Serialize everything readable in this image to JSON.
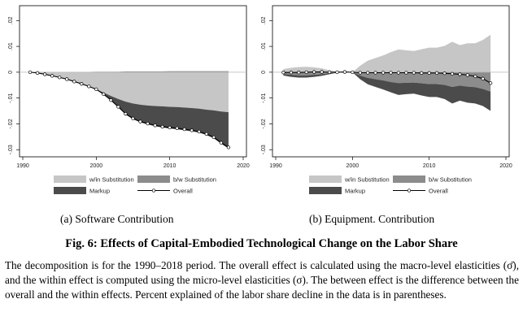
{
  "colors": {
    "within": "#c6c6c6",
    "between": "#8c8c8c",
    "markup": "#4b4b4b",
    "overall_line": "#000000",
    "overall_marker_fill": "#ffffff",
    "zero_line": "#b4b4b4"
  },
  "chart_data": [
    {
      "type": "area",
      "panel": "a",
      "caption": "(a) Software Contribution",
      "x_ticks": [
        1990,
        2000,
        2010,
        2020
      ],
      "y_ticks": [
        0.02,
        0.01,
        0,
        -0.01,
        -0.02,
        -0.03
      ],
      "y_tick_labels": [
        ".02",
        ".01",
        "0",
        "-.01",
        "-.02",
        "-.03"
      ],
      "xlim": [
        1990,
        2020
      ],
      "ylim": [
        -0.0315,
        0.0245
      ],
      "grid": false,
      "x": [
        1991,
        1992,
        1993,
        1994,
        1995,
        1996,
        1997,
        1998,
        1999,
        2000,
        2001,
        2002,
        2003,
        2004,
        2005,
        2006,
        2007,
        2008,
        2009,
        2010,
        2011,
        2012,
        2013,
        2014,
        2015,
        2016,
        2017,
        2018
      ],
      "series": [
        {
          "name": "w/in Substitution",
          "values": [
            0,
            -0.0003,
            -0.0008,
            -0.0014,
            -0.002,
            -0.0028,
            -0.0037,
            -0.0046,
            -0.0056,
            -0.0066,
            -0.0079,
            -0.0092,
            -0.0104,
            -0.0114,
            -0.0121,
            -0.0126,
            -0.0129,
            -0.0131,
            -0.0132,
            -0.0134,
            -0.0135,
            -0.0137,
            -0.0139,
            -0.0141,
            -0.0145,
            -0.0148,
            -0.0152,
            -0.0155
          ]
        },
        {
          "name": "b/w Substitution",
          "values": [
            0,
            0,
            0,
            0,
            0,
            0.0001,
            0.0001,
            0.0001,
            0.0001,
            0.0002,
            0.0002,
            0.0002,
            0.0002,
            0.0003,
            0.0003,
            0.0003,
            0.0003,
            0.0003,
            0.0003,
            0.0004,
            0.0004,
            0.0004,
            0.0004,
            0.0004,
            0.0004,
            0.0004,
            0.0004,
            0.0004
          ]
        },
        {
          "name": "Markup",
          "values": [
            0,
            0,
            0,
            0,
            0,
            0,
            0,
            0,
            0,
            -0.0002,
            -0.0008,
            -0.0018,
            -0.0032,
            -0.005,
            -0.0061,
            -0.0068,
            -0.0073,
            -0.0078,
            -0.0082,
            -0.0084,
            -0.0086,
            -0.0088,
            -0.009,
            -0.0093,
            -0.0098,
            -0.0108,
            -0.0125,
            -0.014
          ]
        },
        {
          "name": "Overall",
          "values": [
            0,
            -0.0003,
            -0.0008,
            -0.0014,
            -0.002,
            -0.0027,
            -0.0036,
            -0.0045,
            -0.0055,
            -0.0066,
            -0.0085,
            -0.0108,
            -0.0134,
            -0.0161,
            -0.0179,
            -0.0191,
            -0.0199,
            -0.0206,
            -0.0211,
            -0.0214,
            -0.0217,
            -0.0221,
            -0.0225,
            -0.023,
            -0.0239,
            -0.0252,
            -0.0273,
            -0.0291
          ]
        }
      ]
    },
    {
      "type": "area",
      "panel": "b",
      "caption": "(b) Equipment. Contribution",
      "x_ticks": [
        1990,
        2000,
        2010,
        2020
      ],
      "y_ticks": [
        0.02,
        0.01,
        0,
        -0.01,
        -0.02,
        -0.03
      ],
      "y_tick_labels": [
        ".02",
        ".01",
        "0",
        "-.01",
        "-.02",
        "-.03"
      ],
      "xlim": [
        1990,
        2020
      ],
      "ylim": [
        -0.0315,
        0.0245
      ],
      "grid": false,
      "x": [
        1991,
        1992,
        1993,
        1994,
        1995,
        1996,
        1997,
        1998,
        1999,
        2000,
        2001,
        2002,
        2003,
        2004,
        2005,
        2006,
        2007,
        2008,
        2009,
        2010,
        2011,
        2012,
        2013,
        2014,
        2015,
        2016,
        2017,
        2018
      ],
      "series": [
        {
          "name": "w/in Substitution",
          "values": [
            0.0012,
            0.0017,
            0.002,
            0.0021,
            0.0019,
            0.0015,
            0.0008,
            0.0002,
            0.0001,
            0,
            0.0025,
            0.0045,
            0.0055,
            0.0065,
            0.0078,
            0.0088,
            0.0085,
            0.0082,
            0.0089,
            0.0095,
            0.0095,
            0.0102,
            0.0118,
            0.0105,
            0.0112,
            0.0112,
            0.0125,
            0.0145
          ]
        },
        {
          "name": "b/w Substitution",
          "values": [
            -0.0007,
            -0.001,
            -0.0012,
            -0.0012,
            -0.001,
            -0.0008,
            -0.0004,
            -0.0001,
            0,
            0,
            -0.0013,
            -0.0022,
            -0.0027,
            -0.0032,
            -0.0038,
            -0.0042,
            -0.0041,
            -0.004,
            -0.0043,
            -0.0046,
            -0.0046,
            -0.0049,
            -0.0057,
            -0.0052,
            -0.0056,
            -0.0058,
            -0.0065,
            -0.0075
          ]
        },
        {
          "name": "Markup",
          "values": [
            -0.0006,
            -0.0008,
            -0.0009,
            -0.0009,
            -0.0008,
            -0.0006,
            -0.0004,
            -0.0001,
            0,
            0,
            -0.0014,
            -0.0025,
            -0.003,
            -0.0035,
            -0.004,
            -0.0046,
            -0.0044,
            -0.0043,
            -0.0047,
            -0.005,
            -0.005,
            -0.0055,
            -0.0064,
            -0.0058,
            -0.0062,
            -0.0063,
            -0.0066,
            -0.0075
          ]
        },
        {
          "name": "Overall",
          "values": [
            -0.0001,
            -0.0001,
            -0.0001,
            0,
            0.0001,
            0.0001,
            0,
            0,
            0.0001,
            0,
            -0.0002,
            -0.0002,
            -0.0002,
            -0.0002,
            -0.0002,
            -0.0002,
            -0.0002,
            -0.0002,
            -0.0003,
            -0.0003,
            -0.0003,
            -0.0004,
            -0.0006,
            -0.0008,
            -0.0011,
            -0.0016,
            -0.0025,
            -0.0042
          ]
        }
      ]
    }
  ],
  "figure_title": "Fig. 6: Effects of Capital-Embodied Technological Change on the Labor Share",
  "note": "The decomposition is for the 1990–2018 period. The overall effect is calculated using the macro-level elasticities (σ̄), and the within effect is computed using the micro-level elasticities (σ). The between effect is the difference between the overall and the within effects. Percent explained of the labor share decline in the data is in parentheses."
}
